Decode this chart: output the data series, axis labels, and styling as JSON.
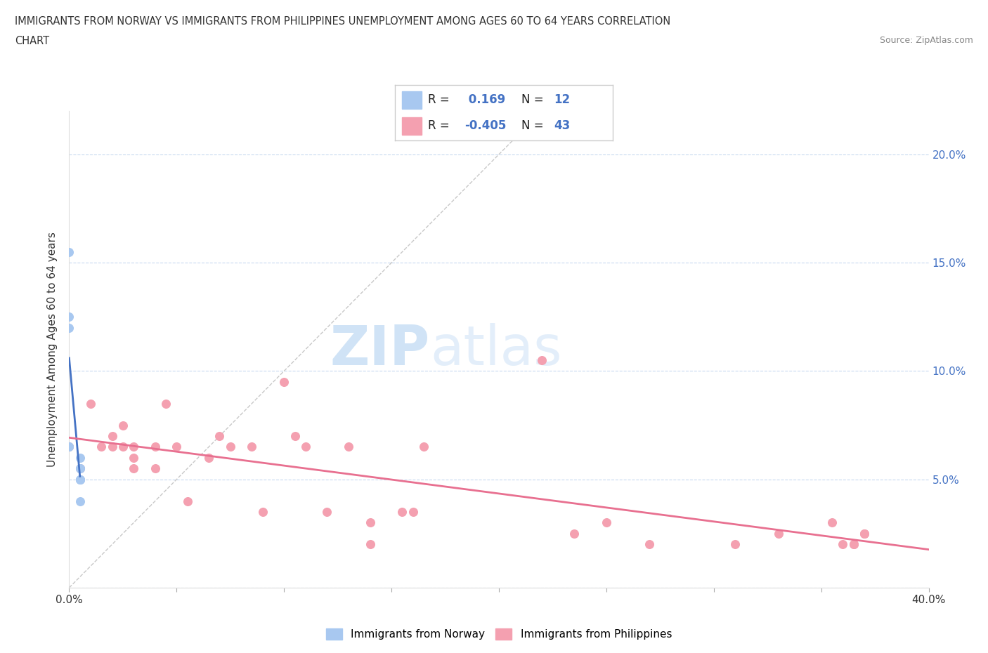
{
  "title_line1": "IMMIGRANTS FROM NORWAY VS IMMIGRANTS FROM PHILIPPINES UNEMPLOYMENT AMONG AGES 60 TO 64 YEARS CORRELATION",
  "title_line2": "CHART",
  "source": "Source: ZipAtlas.com",
  "ylabel": "Unemployment Among Ages 60 to 64 years",
  "xlim": [
    0.0,
    0.4
  ],
  "ylim": [
    0.0,
    0.22
  ],
  "xticks": [
    0.0,
    0.05,
    0.1,
    0.15,
    0.2,
    0.25,
    0.3,
    0.35,
    0.4
  ],
  "yticks": [
    0.0,
    0.05,
    0.1,
    0.15,
    0.2
  ],
  "norway_R": 0.169,
  "norway_N": 12,
  "philippines_R": -0.405,
  "philippines_N": 43,
  "norway_color": "#a8c8f0",
  "philippines_color": "#f4a0b0",
  "norway_line_color": "#4472c4",
  "philippines_line_color": "#e87090",
  "diagonal_color": "#c8c8c8",
  "watermark_zip": "ZIP",
  "watermark_atlas": "atlas",
  "norway_x": [
    0.0,
    0.0,
    0.0,
    0.0,
    0.0,
    0.005,
    0.005,
    0.005,
    0.005,
    0.005,
    0.005,
    0.005
  ],
  "norway_y": [
    0.155,
    0.125,
    0.12,
    0.065,
    0.065,
    0.06,
    0.055,
    0.055,
    0.05,
    0.05,
    0.05,
    0.04
  ],
  "philippines_x": [
    0.0,
    0.005,
    0.01,
    0.015,
    0.02,
    0.02,
    0.025,
    0.025,
    0.03,
    0.03,
    0.03,
    0.04,
    0.04,
    0.045,
    0.05,
    0.055,
    0.065,
    0.07,
    0.075,
    0.085,
    0.09,
    0.1,
    0.105,
    0.11,
    0.12,
    0.13,
    0.14,
    0.14,
    0.155,
    0.16,
    0.165,
    0.22,
    0.235,
    0.25,
    0.27,
    0.31,
    0.33,
    0.355,
    0.36,
    0.365,
    0.365,
    0.37,
    0.37
  ],
  "philippines_y": [
    0.065,
    0.055,
    0.085,
    0.065,
    0.07,
    0.065,
    0.075,
    0.065,
    0.065,
    0.06,
    0.055,
    0.065,
    0.055,
    0.085,
    0.065,
    0.04,
    0.06,
    0.07,
    0.065,
    0.065,
    0.035,
    0.095,
    0.07,
    0.065,
    0.035,
    0.065,
    0.03,
    0.02,
    0.035,
    0.035,
    0.065,
    0.105,
    0.025,
    0.03,
    0.02,
    0.02,
    0.025,
    0.03,
    0.02,
    0.02,
    0.02,
    0.025,
    0.025
  ]
}
